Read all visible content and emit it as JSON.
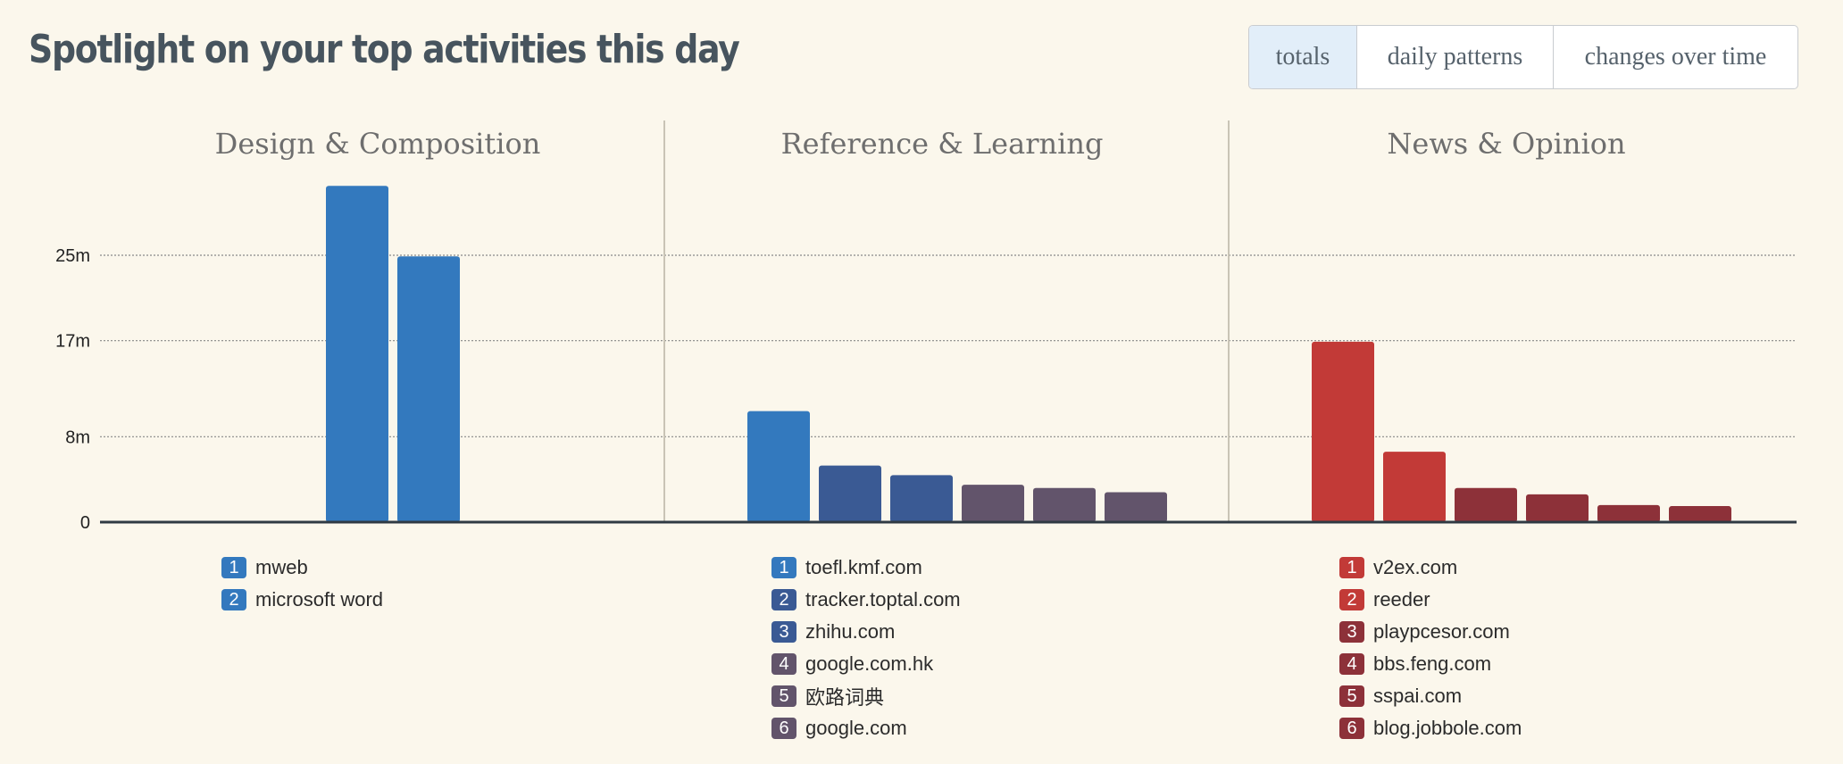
{
  "header": {
    "title": "Spotlight on your top activities this day"
  },
  "view_toggle": {
    "options": [
      "totals",
      "daily patterns",
      "changes over time"
    ],
    "selected": "totals"
  },
  "colors": {
    "background": "#fbf7ec",
    "axis": "#2f3a43",
    "divider": "#c9c4b6",
    "grid": "#888888",
    "panel_title": "#6e6e6e",
    "blue": "#3379be",
    "dark_blue": "#3a5a94",
    "purple_gray": "#62546b",
    "red": "#c23a37",
    "dark_red": "#8d3139"
  },
  "chart_data": {
    "type": "bar",
    "units": "minutes",
    "ylim": [
      0,
      31
    ],
    "yticks": [
      {
        "value": 0,
        "label": "0"
      },
      {
        "value": 8,
        "label": "8m"
      },
      {
        "value": 17,
        "label": "17m"
      },
      {
        "value": 25,
        "label": "25m"
      }
    ],
    "grid": "horizontal dotted",
    "panels": [
      {
        "title": "Design & Composition",
        "bars": [
          {
            "rank": "1",
            "label": "mweb",
            "value": 31.5,
            "color": "#3379be"
          },
          {
            "rank": "2",
            "label": "microsoft word",
            "value": 24.9,
            "color": "#3379be"
          }
        ]
      },
      {
        "title": "Reference & Learning",
        "bars": [
          {
            "rank": "1",
            "label": "toefl.kmf.com",
            "value": 10.4,
            "color": "#3379be"
          },
          {
            "rank": "2",
            "label": "tracker.toptal.com",
            "value": 5.3,
            "color": "#3a5a94"
          },
          {
            "rank": "3",
            "label": "zhihu.com",
            "value": 4.4,
            "color": "#3a5a94"
          },
          {
            "rank": "4",
            "label": "google.com.hk",
            "value": 3.5,
            "color": "#62546b"
          },
          {
            "rank": "5",
            "label": "欧路词典",
            "value": 3.2,
            "color": "#62546b"
          },
          {
            "rank": "6",
            "label": "google.com",
            "value": 2.8,
            "color": "#62546b"
          }
        ]
      },
      {
        "title": "News & Opinion",
        "bars": [
          {
            "rank": "1",
            "label": "v2ex.com",
            "value": 16.9,
            "color": "#c23a37"
          },
          {
            "rank": "2",
            "label": "reeder",
            "value": 6.6,
            "color": "#c23a37"
          },
          {
            "rank": "3",
            "label": "playpcesor.com",
            "value": 3.2,
            "color": "#8d3139"
          },
          {
            "rank": "4",
            "label": "bbs.feng.com",
            "value": 2.6,
            "color": "#8d3139"
          },
          {
            "rank": "5",
            "label": "sspai.com",
            "value": 1.6,
            "color": "#8d3139"
          },
          {
            "rank": "6",
            "label": "blog.jobbole.com",
            "value": 1.5,
            "color": "#8d3139"
          }
        ]
      }
    ]
  }
}
